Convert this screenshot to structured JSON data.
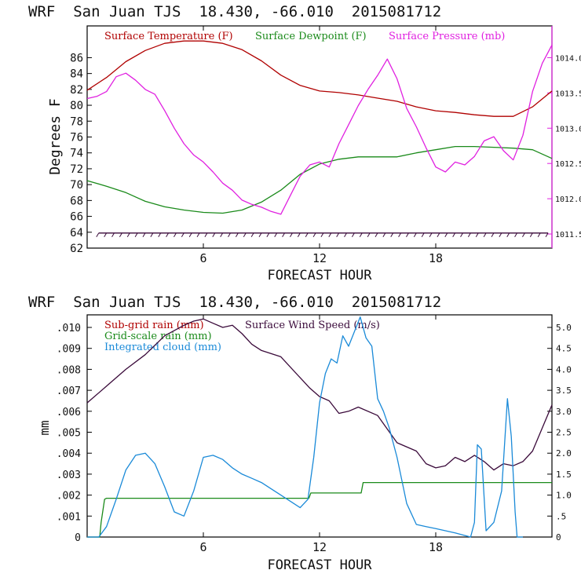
{
  "colors": {
    "temperature": "#b00000",
    "dewpoint": "#1a8a1a",
    "pressure": "#e020e0",
    "wind": "#3a0a3a",
    "subgrid_rain": "#b00000",
    "gridscale_rain": "#1a8a1a",
    "cloud": "#1a8ad8"
  },
  "chart_data": [
    {
      "type": "line",
      "title": "WRF  San Juan TJS  18.430, -66.010  2015081712",
      "xlabel": "FORECAST HOUR",
      "ylabel": "Degrees F",
      "xlim": [
        0,
        24
      ],
      "ylim": [
        62,
        90
      ],
      "y2lim": [
        1011.3,
        1014.45
      ],
      "xticks": [
        6,
        12,
        18
      ],
      "yticks": [
        62,
        64,
        66,
        68,
        70,
        72,
        74,
        76,
        78,
        80,
        82,
        84,
        86
      ],
      "y2ticks": [
        "1011.5",
        "1012.0",
        "1012.5",
        "1013.0",
        "1013.5",
        "1014.0"
      ],
      "legend": [
        "Surface Temperature (F)",
        "Surface Dewpoint (F)",
        "Surface Pressure (mb)"
      ],
      "series": [
        {
          "name": "Surface Temperature (F)",
          "axis": "left",
          "x": [
            0,
            1,
            2,
            3,
            4,
            5,
            6,
            7,
            8,
            9,
            10,
            11,
            12,
            13,
            14,
            15,
            16,
            17,
            18,
            19,
            20,
            21,
            22,
            23,
            24
          ],
          "values": [
            81.9,
            83.5,
            85.5,
            86.9,
            87.8,
            88.1,
            88.1,
            87.8,
            87.0,
            85.6,
            83.8,
            82.5,
            81.8,
            81.6,
            81.3,
            80.9,
            80.5,
            79.8,
            79.3,
            79.1,
            78.8,
            78.6,
            78.6,
            79.8,
            81.8
          ]
        },
        {
          "name": "Surface Dewpoint (F)",
          "axis": "left",
          "x": [
            0,
            1,
            2,
            3,
            4,
            5,
            6,
            7,
            8,
            9,
            10,
            11,
            12,
            13,
            14,
            15,
            16,
            17,
            18,
            19,
            20,
            21,
            22,
            23,
            24
          ],
          "values": [
            70.5,
            69.8,
            69.0,
            67.9,
            67.2,
            66.8,
            66.5,
            66.4,
            66.8,
            67.8,
            69.3,
            71.3,
            72.6,
            73.2,
            73.5,
            73.5,
            73.5,
            74.0,
            74.4,
            74.8,
            74.8,
            74.7,
            74.6,
            74.4,
            73.3
          ]
        },
        {
          "name": "Surface Pressure (mb)",
          "axis": "right",
          "x": [
            0,
            0.5,
            1,
            1.5,
            2,
            2.5,
            3,
            3.5,
            4,
            4.5,
            5,
            5.5,
            6,
            6.5,
            7,
            7.5,
            8,
            8.5,
            9,
            9.5,
            10,
            10.5,
            11,
            11.5,
            12,
            12.5,
            13,
            13.5,
            14,
            14.5,
            15,
            15.5,
            16,
            16.5,
            17,
            17.5,
            18,
            18.5,
            19,
            19.5,
            20,
            20.5,
            21,
            21.5,
            22,
            22.5,
            23,
            23.5,
            24
          ],
          "values": [
            1013.42,
            1013.45,
            1013.52,
            1013.73,
            1013.78,
            1013.68,
            1013.55,
            1013.48,
            1013.25,
            1013.0,
            1012.78,
            1012.62,
            1012.52,
            1012.38,
            1012.22,
            1012.12,
            1011.98,
            1011.92,
            1011.88,
            1011.82,
            1011.78,
            1012.05,
            1012.32,
            1012.48,
            1012.52,
            1012.45,
            1012.78,
            1013.05,
            1013.32,
            1013.55,
            1013.75,
            1013.98,
            1013.7,
            1013.28,
            1013.02,
            1012.72,
            1012.45,
            1012.38,
            1012.52,
            1012.48,
            1012.6,
            1012.82,
            1012.88,
            1012.68,
            1012.55,
            1012.9,
            1013.52,
            1013.92,
            1014.18
          ]
        }
      ],
      "barbs": {
        "name": "Surface wind barbs",
        "y": 63.9,
        "hours": [
          0.6,
          1.0,
          1.4,
          1.8,
          2.2,
          2.6,
          3.0,
          3.4,
          3.8,
          4.2,
          4.6,
          5.0,
          5.4,
          5.8,
          6.2,
          6.6,
          7.0,
          7.4,
          7.8,
          8.2,
          8.6,
          9.0,
          9.4,
          9.8,
          10.2,
          10.6,
          11.0,
          11.4,
          11.8,
          12.2,
          12.6,
          13.0,
          13.4,
          13.8,
          14.2,
          14.6,
          15.0,
          15.4,
          15.8,
          16.2,
          16.6,
          17.0,
          17.4,
          17.8,
          18.2,
          18.6,
          19.0,
          19.4,
          19.8,
          20.2,
          20.6,
          21.0,
          21.4,
          21.8,
          22.2,
          22.6,
          23.0,
          23.4,
          23.8
        ]
      }
    },
    {
      "type": "line",
      "title": "WRF  San Juan TJS  18.430, -66.010  2015081712",
      "xlabel": "FORECAST HOUR",
      "ylabel": "mm",
      "xlim": [
        0,
        24
      ],
      "ylim": [
        0,
        0.0106
      ],
      "y2lim": [
        0,
        5.3
      ],
      "xticks": [
        6,
        12,
        18
      ],
      "yticks": [
        ".010",
        ".009",
        ".008",
        ".007",
        ".006",
        ".005",
        ".004",
        ".003",
        ".002",
        ".001",
        "0"
      ],
      "y2ticks": [
        "5.0",
        "4.5",
        "4.0",
        "3.5",
        "3.0",
        "2.5",
        "2.0",
        "1.5",
        "1.0",
        ".5",
        "0"
      ],
      "legend": [
        "Sub-grid rain (mm)",
        "Surface Wind Speed (m/s)",
        "Grid-scale rain (mm)",
        "Integrated cloud (mm)"
      ],
      "series": [
        {
          "name": "Surface Wind Speed (m/s)",
          "axis": "right",
          "x": [
            0,
            1,
            2,
            3,
            4,
            5,
            5.5,
            6,
            6.5,
            7,
            7.5,
            8,
            8.5,
            9,
            10,
            11,
            11.5,
            12,
            12.5,
            13,
            13.5,
            14,
            15,
            16,
            17,
            17.5,
            18,
            18.5,
            19,
            19.5,
            20,
            20.5,
            21,
            21.5,
            22,
            22.5,
            23,
            24
          ],
          "values": [
            3.2,
            3.6,
            4.0,
            4.35,
            4.8,
            5.05,
            5.15,
            5.2,
            5.1,
            5.0,
            5.05,
            4.85,
            4.6,
            4.45,
            4.3,
            3.8,
            3.55,
            3.35,
            3.25,
            2.95,
            3.0,
            3.1,
            2.9,
            2.25,
            2.05,
            1.75,
            1.65,
            1.7,
            1.9,
            1.8,
            1.95,
            1.8,
            1.6,
            1.75,
            1.7,
            1.8,
            2.05,
            3.15
          ]
        },
        {
          "name": "Grid-scale rain (mm)",
          "axis": "left",
          "x": [
            0,
            0.65,
            0.72,
            0.9,
            1.0,
            11.45,
            11.55,
            14.15,
            14.25,
            24
          ],
          "values": [
            0,
            0,
            0.0007,
            0.0018,
            0.00185,
            0.00185,
            0.0021,
            0.0021,
            0.0026,
            0.0026
          ]
        },
        {
          "name": "Integrated cloud (mm)",
          "axis": "right",
          "x": [
            0,
            0.6,
            1.0,
            1.5,
            2.0,
            2.5,
            3.0,
            3.5,
            4.0,
            4.5,
            5.0,
            5.5,
            6.0,
            6.5,
            7.0,
            7.5,
            8.0,
            8.5,
            9.0,
            9.5,
            10.0,
            10.5,
            11.0,
            11.4,
            11.7,
            12.0,
            12.3,
            12.6,
            12.9,
            13.2,
            13.5,
            13.8,
            14.1,
            14.4,
            14.7,
            15.0,
            15.3,
            15.6,
            16.0,
            16.5,
            17.0,
            17.5,
            18.0,
            19.0,
            19.8,
            20.0,
            20.15,
            20.35,
            20.6,
            21.0,
            21.4,
            21.7,
            21.9,
            22.1,
            22.2,
            22.5
          ],
          "values": [
            0,
            0,
            0.25,
            0.9,
            1.6,
            1.95,
            2.0,
            1.75,
            1.2,
            0.6,
            0.5,
            1.1,
            1.9,
            1.95,
            1.85,
            1.65,
            1.5,
            1.4,
            1.3,
            1.15,
            1.0,
            0.85,
            0.7,
            0.9,
            1.9,
            3.2,
            3.9,
            4.25,
            4.15,
            4.8,
            4.55,
            4.9,
            5.25,
            4.75,
            4.55,
            3.3,
            3.0,
            2.6,
            1.9,
            0.8,
            0.3,
            0.25,
            0.2,
            0.1,
            0,
            0.35,
            2.2,
            2.1,
            0.15,
            0.35,
            1.1,
            3.3,
            2.4,
            0.6,
            0,
            0
          ]
        }
      ]
    }
  ]
}
